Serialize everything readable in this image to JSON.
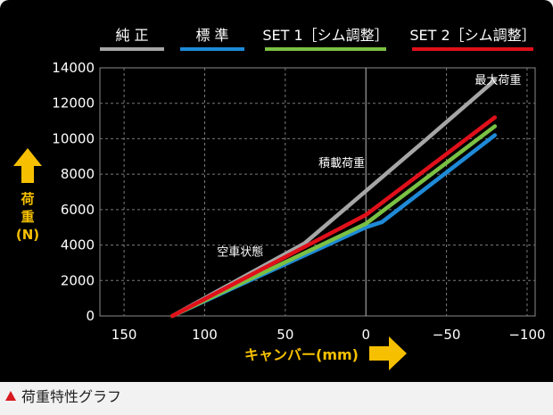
{
  "caption": "荷重特性グラフ",
  "colors": {
    "accent_yellow": "#f6c000",
    "caption_triangle": "#d8191f"
  },
  "chart_data": {
    "type": "line",
    "title": "",
    "ylabel": "荷重(N)",
    "xlabel": "キャンバー(mm)",
    "xlim": [
      165,
      -105
    ],
    "ylim": [
      0,
      14000
    ],
    "grid": true,
    "legend_position": "top",
    "x_ticks": [
      150,
      100,
      50,
      0,
      -50,
      -100
    ],
    "x_tick_labels": [
      "150",
      "100",
      "50",
      "0",
      "−50",
      "−100"
    ],
    "y_ticks": [
      0,
      2000,
      4000,
      6000,
      8000,
      10000,
      12000,
      14000
    ],
    "y_tick_labels": [
      "0",
      "2000",
      "4000",
      "6000",
      "8000",
      "10000",
      "12000",
      "14000"
    ],
    "series": [
      {
        "name": "純 正",
        "color": "#a6a6a6",
        "x": [
          120,
          38,
          -38,
          -80
        ],
        "y": [
          0,
          4100,
          10000,
          13300
        ]
      },
      {
        "name": "標 準",
        "color": "#1e8ad8",
        "x": [
          120,
          0,
          -10,
          -80
        ],
        "y": [
          0,
          5000,
          5300,
          10200
        ]
      },
      {
        "name": "SET 1［シム調整］",
        "color": "#7ac143",
        "x": [
          120,
          0,
          -80
        ],
        "y": [
          0,
          5200,
          10700
        ]
      },
      {
        "name": "SET 2［シム調整］",
        "color": "#e0101a",
        "x": [
          120,
          0,
          -80
        ],
        "y": [
          0,
          5700,
          11200
        ]
      }
    ],
    "annotations": [
      {
        "text": "最大荷重",
        "x": -82,
        "y": 13100
      },
      {
        "text": "積載荷重",
        "x": 15,
        "y": 8400
      },
      {
        "text": "空車状態",
        "x": 78,
        "y": 3400
      }
    ]
  }
}
